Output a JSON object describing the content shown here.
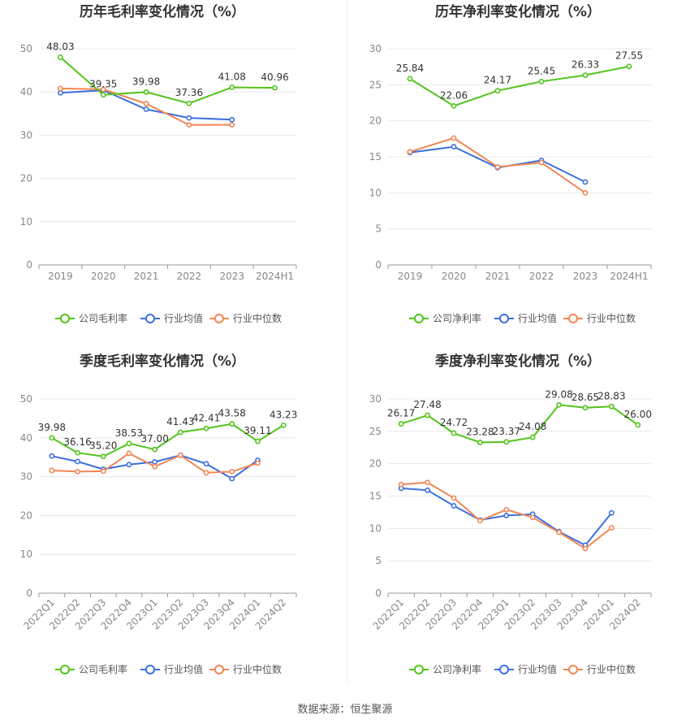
{
  "colors": {
    "company": "#52c41a",
    "avg": "#3b6fe0",
    "median": "#f08654",
    "grid": "#e8e8e8",
    "axis": "#999999"
  },
  "legend": {
    "company_gross": "公司毛利率",
    "company_net": "公司净利率",
    "avg": "行业均值",
    "median": "行业中位数"
  },
  "source": "数据来源：恒生聚源",
  "chart_data": [
    {
      "type": "line",
      "title": "历年毛利率变化情况（%）",
      "categories": [
        "2019",
        "2020",
        "2021",
        "2022",
        "2023",
        "2024H1"
      ],
      "ylim": [
        0,
        50
      ],
      "yticks": [
        0,
        10,
        20,
        30,
        40,
        50
      ],
      "series": [
        {
          "name": "公司毛利率",
          "values": [
            48.03,
            39.35,
            39.98,
            37.36,
            41.08,
            40.96
          ],
          "labels": [
            "48.03",
            "39.35",
            "39.98",
            "37.36",
            "41.08",
            "40.96"
          ]
        },
        {
          "name": "行业均值",
          "values": [
            39.8,
            40.4,
            36.0,
            34.0,
            33.6,
            null
          ]
        },
        {
          "name": "行业中位数",
          "values": [
            40.8,
            40.6,
            37.3,
            32.4,
            32.4,
            null
          ]
        }
      ],
      "legend_position": "bottom",
      "grid": true
    },
    {
      "type": "line",
      "title": "历年净利率变化情况（%）",
      "categories": [
        "2019",
        "2020",
        "2021",
        "2022",
        "2023",
        "2024H1"
      ],
      "ylim": [
        0,
        30
      ],
      "yticks": [
        0,
        5,
        10,
        15,
        20,
        25,
        30
      ],
      "series": [
        {
          "name": "公司净利率",
          "values": [
            25.84,
            22.06,
            24.17,
            25.45,
            26.33,
            27.55
          ],
          "labels": [
            "25.84",
            "22.06",
            "24.17",
            "25.45",
            "26.33",
            "27.55"
          ]
        },
        {
          "name": "行业均值",
          "values": [
            15.6,
            16.4,
            13.5,
            14.5,
            11.5,
            null
          ]
        },
        {
          "name": "行业中位数",
          "values": [
            15.7,
            17.6,
            13.6,
            14.2,
            10.0,
            null
          ]
        }
      ],
      "legend_position": "bottom",
      "grid": true
    },
    {
      "type": "line",
      "title": "季度毛利率变化情况（%）",
      "categories": [
        "2022Q1",
        "2022Q2",
        "2022Q3",
        "2022Q4",
        "2023Q1",
        "2023Q2",
        "2023Q3",
        "2023Q4",
        "2024Q1",
        "2024Q2"
      ],
      "ylim": [
        0,
        50
      ],
      "yticks": [
        0,
        10,
        20,
        30,
        40,
        50
      ],
      "series": [
        {
          "name": "公司毛利率",
          "values": [
            39.98,
            36.16,
            35.2,
            38.53,
            37.0,
            41.43,
            42.41,
            43.58,
            39.11,
            43.23
          ],
          "labels": [
            "39.98",
            "36.16",
            "35.20",
            "38.53",
            "37.00",
            "41.43",
            "42.41",
            "43.58",
            "39.11",
            "43.23"
          ]
        },
        {
          "name": "行业均值",
          "values": [
            35.3,
            33.9,
            31.9,
            33.1,
            33.8,
            35.5,
            33.3,
            29.5,
            34.2,
            null
          ]
        },
        {
          "name": "行业中位数",
          "values": [
            31.6,
            31.3,
            31.4,
            36.0,
            32.6,
            35.5,
            31.0,
            31.3,
            33.5,
            null
          ]
        }
      ],
      "legend_position": "bottom",
      "grid": true
    },
    {
      "type": "line",
      "title": "季度净利率变化情况（%）",
      "categories": [
        "2022Q1",
        "2022Q2",
        "2022Q3",
        "2022Q4",
        "2023Q1",
        "2023Q2",
        "2023Q3",
        "2023Q4",
        "2024Q1",
        "2024Q2"
      ],
      "ylim": [
        0,
        30
      ],
      "yticks": [
        0,
        5,
        10,
        15,
        20,
        25,
        30
      ],
      "series": [
        {
          "name": "公司净利率",
          "values": [
            26.17,
            27.48,
            24.72,
            23.28,
            23.37,
            24.08,
            29.08,
            28.65,
            28.83,
            26.0
          ],
          "labels": [
            "26.17",
            "27.48",
            "24.72",
            "23.28",
            "23.37",
            "24.08",
            "29.08",
            "28.65",
            "28.83",
            "26.00"
          ]
        },
        {
          "name": "行业均值",
          "values": [
            16.2,
            15.9,
            13.5,
            11.3,
            12.0,
            12.2,
            9.5,
            7.4,
            12.4,
            null
          ]
        },
        {
          "name": "行业中位数",
          "values": [
            16.8,
            17.1,
            14.7,
            11.2,
            12.9,
            11.7,
            9.4,
            6.9,
            10.1,
            null
          ]
        }
      ],
      "legend_position": "bottom",
      "grid": true
    }
  ]
}
